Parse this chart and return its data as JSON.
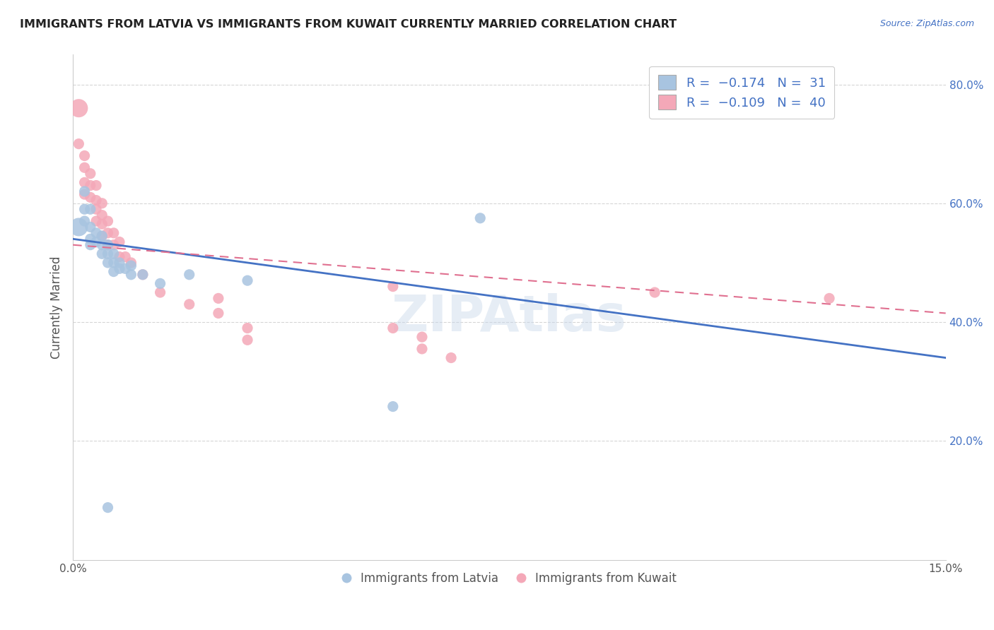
{
  "title": "IMMIGRANTS FROM LATVIA VS IMMIGRANTS FROM KUWAIT CURRENTLY MARRIED CORRELATION CHART",
  "source": "Source: ZipAtlas.com",
  "ylabel": "Currently Married",
  "xlim": [
    0.0,
    0.15
  ],
  "ylim": [
    0.0,
    0.85
  ],
  "xticks": [
    0.0,
    0.05,
    0.1,
    0.15
  ],
  "xticklabels": [
    "0.0%",
    "",
    "",
    "15.0%"
  ],
  "yticks": [
    0.2,
    0.4,
    0.6,
    0.8
  ],
  "yticklabels": [
    "20.0%",
    "40.0%",
    "60.0%",
    "80.0%"
  ],
  "color_latvia": "#a8c4e0",
  "color_kuwait": "#f4a8b8",
  "line_color_latvia": "#4472c4",
  "line_color_kuwait": "#e07090",
  "latvia_points": [
    [
      0.001,
      0.56
    ],
    [
      0.002,
      0.62
    ],
    [
      0.002,
      0.59
    ],
    [
      0.002,
      0.57
    ],
    [
      0.003,
      0.59
    ],
    [
      0.003,
      0.56
    ],
    [
      0.003,
      0.54
    ],
    [
      0.003,
      0.53
    ],
    [
      0.004,
      0.55
    ],
    [
      0.004,
      0.535
    ],
    [
      0.005,
      0.545
    ],
    [
      0.005,
      0.53
    ],
    [
      0.005,
      0.515
    ],
    [
      0.006,
      0.53
    ],
    [
      0.006,
      0.515
    ],
    [
      0.006,
      0.5
    ],
    [
      0.007,
      0.515
    ],
    [
      0.007,
      0.5
    ],
    [
      0.007,
      0.485
    ],
    [
      0.008,
      0.5
    ],
    [
      0.008,
      0.49
    ],
    [
      0.009,
      0.49
    ],
    [
      0.01,
      0.495
    ],
    [
      0.01,
      0.48
    ],
    [
      0.012,
      0.48
    ],
    [
      0.015,
      0.465
    ],
    [
      0.02,
      0.48
    ],
    [
      0.03,
      0.47
    ],
    [
      0.07,
      0.575
    ],
    [
      0.006,
      0.088
    ],
    [
      0.055,
      0.258
    ]
  ],
  "kuwait_points": [
    [
      0.001,
      0.76
    ],
    [
      0.001,
      0.7
    ],
    [
      0.002,
      0.68
    ],
    [
      0.002,
      0.66
    ],
    [
      0.002,
      0.635
    ],
    [
      0.002,
      0.615
    ],
    [
      0.003,
      0.65
    ],
    [
      0.003,
      0.63
    ],
    [
      0.003,
      0.61
    ],
    [
      0.004,
      0.63
    ],
    [
      0.004,
      0.605
    ],
    [
      0.004,
      0.59
    ],
    [
      0.004,
      0.57
    ],
    [
      0.005,
      0.6
    ],
    [
      0.005,
      0.58
    ],
    [
      0.005,
      0.565
    ],
    [
      0.005,
      0.545
    ],
    [
      0.006,
      0.57
    ],
    [
      0.006,
      0.55
    ],
    [
      0.006,
      0.53
    ],
    [
      0.007,
      0.55
    ],
    [
      0.007,
      0.53
    ],
    [
      0.008,
      0.535
    ],
    [
      0.008,
      0.51
    ],
    [
      0.009,
      0.51
    ],
    [
      0.01,
      0.5
    ],
    [
      0.012,
      0.48
    ],
    [
      0.015,
      0.45
    ],
    [
      0.02,
      0.43
    ],
    [
      0.025,
      0.44
    ],
    [
      0.025,
      0.415
    ],
    [
      0.03,
      0.39
    ],
    [
      0.03,
      0.37
    ],
    [
      0.055,
      0.46
    ],
    [
      0.055,
      0.39
    ],
    [
      0.06,
      0.375
    ],
    [
      0.06,
      0.355
    ],
    [
      0.065,
      0.34
    ],
    [
      0.1,
      0.45
    ],
    [
      0.13,
      0.44
    ]
  ],
  "latvia_trend_x": [
    0.0,
    0.15
  ],
  "latvia_trend_y": [
    0.54,
    0.34
  ],
  "kuwait_trend_x": [
    0.0,
    0.15
  ],
  "kuwait_trend_y": [
    0.53,
    0.415
  ],
  "latvia_large_idx": 0,
  "kuwait_large_idx": 0
}
